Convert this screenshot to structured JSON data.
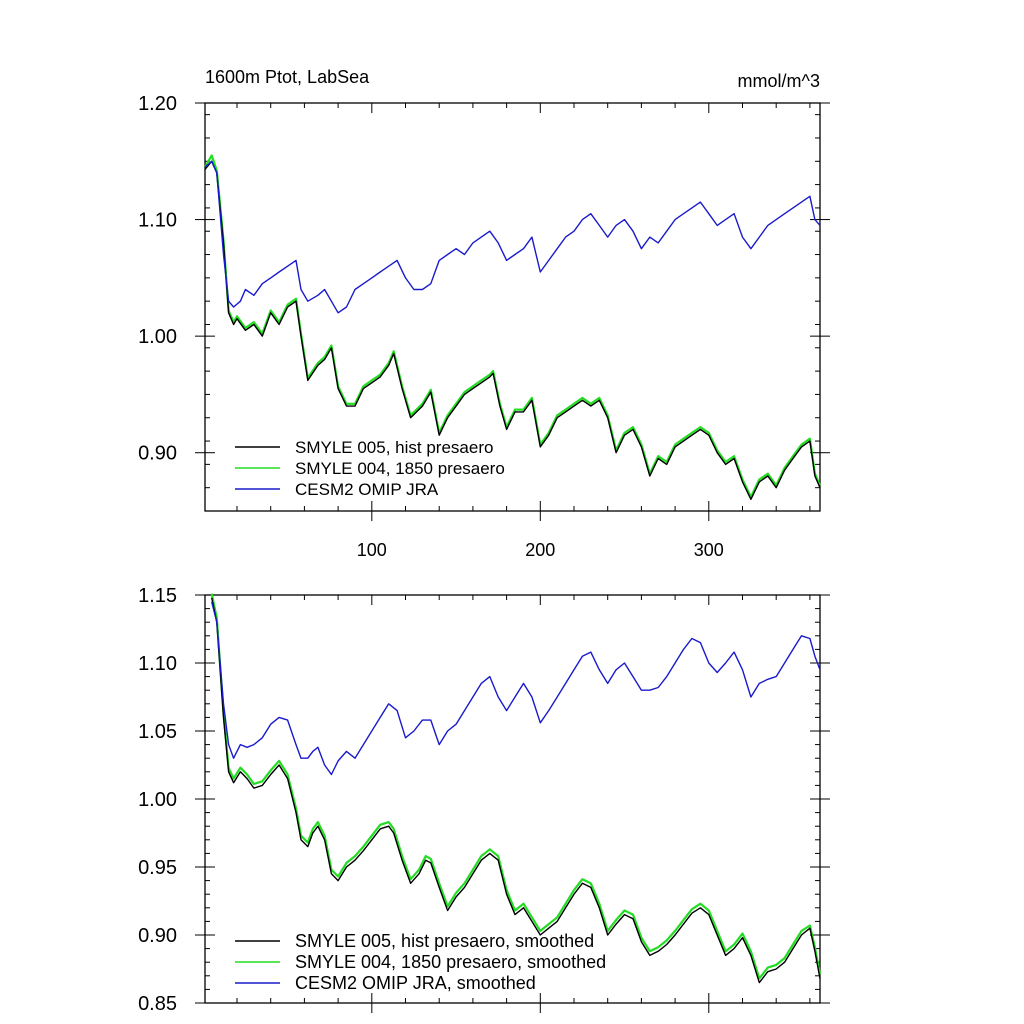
{
  "chart_data": [
    {
      "type": "line",
      "title": "1600m Ptot, LabSea",
      "units": "mmol/m^3",
      "xlabel": "",
      "ylabel": "",
      "xlim": [
        1,
        366
      ],
      "ylim": [
        0.85,
        1.2
      ],
      "xticks": [
        100,
        200,
        300
      ],
      "xtick_labels": [
        "100",
        "200",
        "300"
      ],
      "yticks": [
        0.9,
        1.0,
        1.1,
        1.2
      ],
      "ytick_labels": [
        "0.90",
        "1.00",
        "1.10",
        "1.20"
      ],
      "legend_position": "bottom-left",
      "series": [
        {
          "name": "SMYLE 005, hist presaero",
          "color": "#000000",
          "x": [
            1,
            5,
            8,
            12,
            15,
            18,
            20,
            25,
            30,
            35,
            40,
            45,
            50,
            55,
            58,
            62,
            68,
            72,
            76,
            80,
            85,
            90,
            95,
            100,
            105,
            110,
            113,
            118,
            123,
            130,
            135,
            140,
            145,
            150,
            155,
            160,
            165,
            170,
            172,
            176,
            180,
            185,
            190,
            195,
            200,
            205,
            210,
            215,
            220,
            225,
            230,
            235,
            240,
            245,
            250,
            255,
            260,
            265,
            270,
            275,
            280,
            285,
            290,
            295,
            300,
            305,
            310,
            315,
            320,
            325,
            330,
            335,
            340,
            345,
            350,
            355,
            360,
            363,
            366
          ],
          "values": [
            1.143,
            1.15,
            1.14,
            1.08,
            1.02,
            1.01,
            1.015,
            1.005,
            1.01,
            1.0,
            1.02,
            1.01,
            1.025,
            1.03,
            1.0,
            0.962,
            0.975,
            0.98,
            0.99,
            0.955,
            0.94,
            0.94,
            0.955,
            0.96,
            0.965,
            0.975,
            0.985,
            0.955,
            0.93,
            0.94,
            0.952,
            0.915,
            0.93,
            0.94,
            0.95,
            0.955,
            0.96,
            0.965,
            0.968,
            0.94,
            0.92,
            0.935,
            0.935,
            0.945,
            0.905,
            0.915,
            0.93,
            0.935,
            0.94,
            0.945,
            0.94,
            0.945,
            0.93,
            0.9,
            0.915,
            0.92,
            0.905,
            0.88,
            0.895,
            0.89,
            0.905,
            0.91,
            0.915,
            0.92,
            0.915,
            0.9,
            0.89,
            0.895,
            0.875,
            0.86,
            0.875,
            0.88,
            0.87,
            0.885,
            0.895,
            0.905,
            0.91,
            0.88,
            0.87
          ]
        },
        {
          "name": "SMYLE 004, 1850 presaero",
          "color": "#22dd22",
          "x": [
            1,
            5,
            8,
            12,
            15,
            18,
            20,
            25,
            30,
            35,
            40,
            45,
            50,
            55,
            58,
            62,
            68,
            72,
            76,
            80,
            85,
            90,
            95,
            100,
            105,
            110,
            113,
            118,
            123,
            130,
            135,
            140,
            145,
            150,
            155,
            160,
            165,
            170,
            172,
            176,
            180,
            185,
            190,
            195,
            200,
            205,
            210,
            215,
            220,
            225,
            230,
            235,
            240,
            245,
            250,
            255,
            260,
            265,
            270,
            275,
            280,
            285,
            290,
            295,
            300,
            305,
            310,
            315,
            320,
            325,
            330,
            335,
            340,
            345,
            350,
            355,
            360,
            363,
            366
          ],
          "values": [
            1.145,
            1.155,
            1.142,
            1.082,
            1.022,
            1.012,
            1.017,
            1.007,
            1.012,
            1.002,
            1.022,
            1.012,
            1.027,
            1.032,
            1.002,
            0.964,
            0.977,
            0.982,
            0.992,
            0.957,
            0.942,
            0.942,
            0.957,
            0.962,
            0.967,
            0.977,
            0.987,
            0.957,
            0.932,
            0.942,
            0.954,
            0.917,
            0.932,
            0.942,
            0.952,
            0.957,
            0.962,
            0.967,
            0.97,
            0.942,
            0.922,
            0.937,
            0.937,
            0.947,
            0.907,
            0.917,
            0.932,
            0.937,
            0.942,
            0.947,
            0.942,
            0.947,
            0.932,
            0.902,
            0.917,
            0.922,
            0.907,
            0.882,
            0.897,
            0.892,
            0.907,
            0.912,
            0.917,
            0.922,
            0.917,
            0.902,
            0.892,
            0.897,
            0.877,
            0.862,
            0.877,
            0.882,
            0.872,
            0.887,
            0.897,
            0.907,
            0.912,
            0.882,
            0.872
          ]
        },
        {
          "name": "CESM2 OMIP JRA",
          "color": "#1a1acc",
          "x": [
            1,
            5,
            8,
            12,
            15,
            18,
            22,
            25,
            30,
            35,
            40,
            45,
            50,
            55,
            58,
            62,
            68,
            72,
            76,
            80,
            85,
            90,
            95,
            100,
            105,
            110,
            115,
            120,
            125,
            130,
            135,
            140,
            145,
            150,
            155,
            160,
            165,
            170,
            175,
            180,
            185,
            190,
            195,
            200,
            205,
            210,
            215,
            220,
            225,
            230,
            235,
            240,
            245,
            250,
            255,
            260,
            265,
            270,
            275,
            280,
            285,
            290,
            295,
            300,
            305,
            310,
            315,
            320,
            325,
            330,
            335,
            340,
            345,
            350,
            355,
            360,
            363,
            366
          ],
          "values": [
            1.145,
            1.15,
            1.14,
            1.07,
            1.03,
            1.025,
            1.03,
            1.04,
            1.035,
            1.045,
            1.05,
            1.055,
            1.06,
            1.065,
            1.04,
            1.03,
            1.035,
            1.04,
            1.03,
            1.02,
            1.025,
            1.04,
            1.045,
            1.05,
            1.055,
            1.06,
            1.065,
            1.05,
            1.04,
            1.04,
            1.045,
            1.065,
            1.07,
            1.075,
            1.07,
            1.08,
            1.085,
            1.09,
            1.08,
            1.065,
            1.07,
            1.075,
            1.085,
            1.055,
            1.065,
            1.075,
            1.085,
            1.09,
            1.1,
            1.105,
            1.095,
            1.085,
            1.095,
            1.1,
            1.09,
            1.075,
            1.085,
            1.08,
            1.09,
            1.1,
            1.105,
            1.11,
            1.115,
            1.105,
            1.095,
            1.1,
            1.105,
            1.085,
            1.075,
            1.085,
            1.095,
            1.1,
            1.105,
            1.11,
            1.115,
            1.12,
            1.1,
            1.095
          ]
        }
      ]
    },
    {
      "type": "line",
      "title": "",
      "xlabel": "",
      "ylabel": "",
      "xlim": [
        1,
        366
      ],
      "ylim": [
        0.85,
        1.15
      ],
      "xticks": [
        100,
        200,
        300
      ],
      "xtick_labels": [],
      "yticks": [
        0.85,
        0.9,
        0.95,
        1.0,
        1.05,
        1.1,
        1.15
      ],
      "ytick_labels": [
        "0.85",
        "0.90",
        "0.95",
        "1.00",
        "1.05",
        "1.10",
        "1.15"
      ],
      "legend_position": "bottom-left",
      "series": [
        {
          "name": "SMYLE 005, hist presaero, smoothed",
          "color": "#000000",
          "x": [
            5,
            8,
            12,
            15,
            18,
            22,
            26,
            30,
            35,
            40,
            45,
            50,
            55,
            58,
            62,
            65,
            68,
            72,
            76,
            80,
            85,
            90,
            95,
            100,
            105,
            110,
            113,
            118,
            123,
            128,
            132,
            135,
            140,
            145,
            150,
            155,
            160,
            165,
            170,
            175,
            180,
            185,
            190,
            195,
            200,
            205,
            210,
            215,
            220,
            225,
            230,
            235,
            240,
            245,
            250,
            255,
            260,
            265,
            270,
            275,
            280,
            285,
            290,
            295,
            300,
            305,
            310,
            315,
            320,
            325,
            330,
            335,
            340,
            345,
            350,
            355,
            360,
            363,
            366
          ],
          "values": [
            1.148,
            1.13,
            1.06,
            1.02,
            1.012,
            1.02,
            1.015,
            1.008,
            1.01,
            1.018,
            1.025,
            1.015,
            0.99,
            0.97,
            0.965,
            0.975,
            0.98,
            0.97,
            0.945,
            0.94,
            0.95,
            0.955,
            0.962,
            0.97,
            0.978,
            0.98,
            0.975,
            0.955,
            0.938,
            0.945,
            0.955,
            0.953,
            0.935,
            0.918,
            0.928,
            0.935,
            0.945,
            0.955,
            0.96,
            0.955,
            0.93,
            0.915,
            0.92,
            0.91,
            0.9,
            0.905,
            0.91,
            0.92,
            0.93,
            0.938,
            0.935,
            0.92,
            0.9,
            0.908,
            0.915,
            0.912,
            0.895,
            0.885,
            0.888,
            0.893,
            0.9,
            0.908,
            0.916,
            0.92,
            0.915,
            0.9,
            0.885,
            0.89,
            0.898,
            0.885,
            0.865,
            0.873,
            0.875,
            0.88,
            0.89,
            0.9,
            0.905,
            0.888,
            0.868
          ]
        },
        {
          "name": "SMYLE 004, 1850 presaero, smoothed",
          "color": "#22dd22",
          "x": [
            5,
            8,
            12,
            15,
            18,
            22,
            26,
            30,
            35,
            40,
            45,
            50,
            55,
            58,
            62,
            65,
            68,
            72,
            76,
            80,
            85,
            90,
            95,
            100,
            105,
            110,
            113,
            118,
            123,
            128,
            132,
            135,
            140,
            145,
            150,
            155,
            160,
            165,
            170,
            175,
            180,
            185,
            190,
            195,
            200,
            205,
            210,
            215,
            220,
            225,
            230,
            235,
            240,
            245,
            250,
            255,
            260,
            265,
            270,
            275,
            280,
            285,
            290,
            295,
            300,
            305,
            310,
            315,
            320,
            325,
            330,
            335,
            340,
            345,
            350,
            355,
            360,
            363,
            366
          ],
          "values": [
            1.151,
            1.133,
            1.063,
            1.023,
            1.015,
            1.023,
            1.018,
            1.011,
            1.013,
            1.021,
            1.028,
            1.018,
            0.993,
            0.973,
            0.968,
            0.978,
            0.983,
            0.973,
            0.948,
            0.943,
            0.953,
            0.958,
            0.965,
            0.973,
            0.981,
            0.983,
            0.978,
            0.958,
            0.941,
            0.948,
            0.958,
            0.956,
            0.938,
            0.921,
            0.931,
            0.938,
            0.948,
            0.958,
            0.963,
            0.958,
            0.933,
            0.918,
            0.923,
            0.913,
            0.903,
            0.908,
            0.913,
            0.923,
            0.933,
            0.941,
            0.938,
            0.923,
            0.903,
            0.911,
            0.918,
            0.915,
            0.898,
            0.888,
            0.891,
            0.896,
            0.903,
            0.911,
            0.919,
            0.923,
            0.918,
            0.903,
            0.888,
            0.893,
            0.901,
            0.888,
            0.868,
            0.876,
            0.878,
            0.883,
            0.893,
            0.903,
            0.907,
            0.891,
            0.871
          ]
        },
        {
          "name": "CESM2 OMIP JRA, smoothed",
          "color": "#1a1acc",
          "x": [
            5,
            8,
            12,
            15,
            18,
            22,
            26,
            30,
            35,
            40,
            45,
            50,
            55,
            58,
            62,
            65,
            68,
            72,
            76,
            80,
            85,
            90,
            95,
            100,
            105,
            110,
            115,
            120,
            125,
            130,
            135,
            140,
            145,
            150,
            155,
            160,
            165,
            170,
            175,
            180,
            185,
            190,
            195,
            200,
            205,
            210,
            215,
            220,
            225,
            230,
            235,
            240,
            245,
            250,
            255,
            260,
            265,
            270,
            275,
            280,
            285,
            290,
            295,
            300,
            305,
            310,
            315,
            320,
            325,
            330,
            335,
            340,
            345,
            350,
            355,
            360,
            363,
            366
          ],
          "values": [
            1.145,
            1.13,
            1.07,
            1.04,
            1.03,
            1.04,
            1.038,
            1.04,
            1.045,
            1.055,
            1.06,
            1.058,
            1.04,
            1.03,
            1.03,
            1.035,
            1.038,
            1.025,
            1.018,
            1.028,
            1.035,
            1.03,
            1.04,
            1.05,
            1.06,
            1.07,
            1.065,
            1.045,
            1.05,
            1.058,
            1.058,
            1.04,
            1.05,
            1.055,
            1.065,
            1.075,
            1.085,
            1.09,
            1.075,
            1.065,
            1.075,
            1.085,
            1.075,
            1.056,
            1.065,
            1.075,
            1.085,
            1.095,
            1.105,
            1.108,
            1.095,
            1.085,
            1.095,
            1.1,
            1.09,
            1.08,
            1.08,
            1.082,
            1.09,
            1.1,
            1.11,
            1.118,
            1.115,
            1.1,
            1.093,
            1.1,
            1.108,
            1.095,
            1.075,
            1.085,
            1.088,
            1.09,
            1.1,
            1.11,
            1.12,
            1.118,
            1.105,
            1.095
          ]
        }
      ]
    }
  ]
}
